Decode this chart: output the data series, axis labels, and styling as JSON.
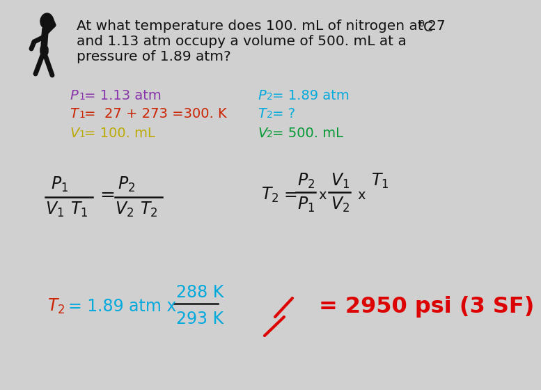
{
  "bg_color": "#d0d0d0",
  "color_purple": "#8833aa",
  "color_red": "#cc2200",
  "color_gold": "#bbaa00",
  "color_cyan": "#00aadd",
  "color_green": "#009933",
  "color_black": "#111111",
  "color_bright_red": "#dd0000",
  "line1": "At what temperature does 100. mL of nitrogen at 27 ",
  "sup0": "0",
  "supC": "C",
  "line2": "and 1.13 atm occupy a volume of 500. mL at a",
  "line3": "pressure of 1.89 atm?",
  "p1_italic": "P",
  "p1_sub": "1",
  "p1_rest": "= 1.13 atm",
  "p2_italic": "P",
  "p2_sub": "2",
  "p2_rest": "= 1.89 atm",
  "t1_italic": "T",
  "t1_sub": "1",
  "t1_rest": "=  27 + 273 =300. K",
  "t2_italic": "T",
  "t2_sub": "2",
  "t2_rest": "= ?",
  "v1_italic": "V",
  "v1_sub": "1",
  "v1_rest": "= 100. mL",
  "v2_italic": "V",
  "v2_sub": "2",
  "v2_rest": "= 500. mL",
  "answer": "= 2950 psi (3 SF)"
}
